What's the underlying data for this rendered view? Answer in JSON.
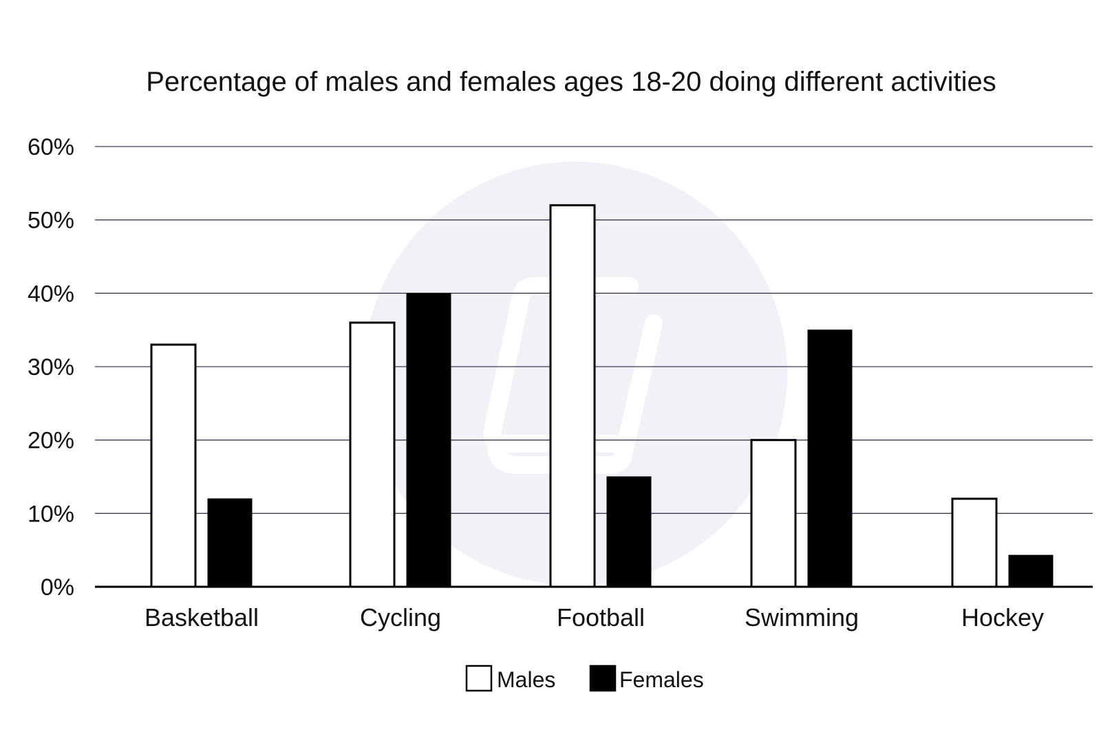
{
  "chart_data": {
    "type": "bar",
    "title": "Percentage of males and females ages 18-20 doing different activities",
    "xlabel": "",
    "ylabel": "",
    "categories": [
      "Basketball",
      "Cycling",
      "Football",
      "Swimming",
      "Hockey"
    ],
    "series": [
      {
        "name": "Males",
        "values": [
          33,
          36,
          52,
          20,
          12
        ],
        "color": "#ffffff",
        "stroke": "#000000"
      },
      {
        "name": "Females",
        "values": [
          12,
          40,
          15,
          35,
          4.3
        ],
        "color": "#000000",
        "stroke": "#000000"
      }
    ],
    "ylim": [
      0,
      60
    ],
    "yticks": [
      0,
      10,
      20,
      30,
      40,
      50,
      60
    ],
    "ytick_labels": [
      "0%",
      "10%",
      "20%",
      "30%",
      "40%",
      "50%",
      "60%"
    ],
    "grid": true,
    "legend_position": "bottom-center",
    "grid_color": "#3a3a5a",
    "watermark_color": "#f1f1f7"
  }
}
